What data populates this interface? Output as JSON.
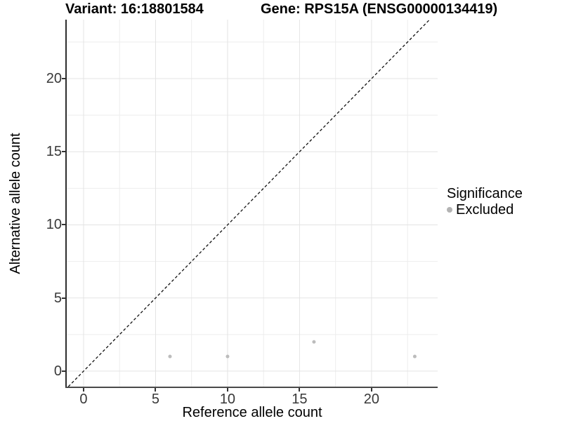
{
  "chart_data": {
    "type": "scatter",
    "title_left": "Variant: 16:18801584",
    "title_right": "Gene: RPS15A (ENSG00000134419)",
    "xlabel": "Reference allele count",
    "ylabel": "Alternative allele count",
    "xlim": [
      -1.17,
      24.59
    ],
    "ylim": [
      -1.06,
      24.03
    ],
    "xticks": [
      0,
      5,
      10,
      15,
      20
    ],
    "yticks": [
      0,
      5,
      10,
      15,
      20
    ],
    "minor_step": 2.5,
    "grid": "on",
    "legend_position": "right",
    "identity_line": {
      "slope": 1,
      "intercept": 0,
      "style": "dashed",
      "color": "#111111"
    },
    "series": [
      {
        "name": "Excluded",
        "color": "#bcbcbc",
        "points": [
          [
            6,
            1
          ],
          [
            10,
            1
          ],
          [
            16,
            2
          ],
          [
            23,
            1
          ]
        ]
      }
    ],
    "legend": {
      "title": "Significance",
      "entries": [
        {
          "label": "Excluded",
          "color": "#b3b3b3"
        }
      ]
    }
  },
  "colors": {
    "grid_major": "#e4e4e4",
    "grid_minor": "#ededed",
    "axis_line": "#333333",
    "tick_text": "#383838",
    "point": "#bcbcbc"
  }
}
